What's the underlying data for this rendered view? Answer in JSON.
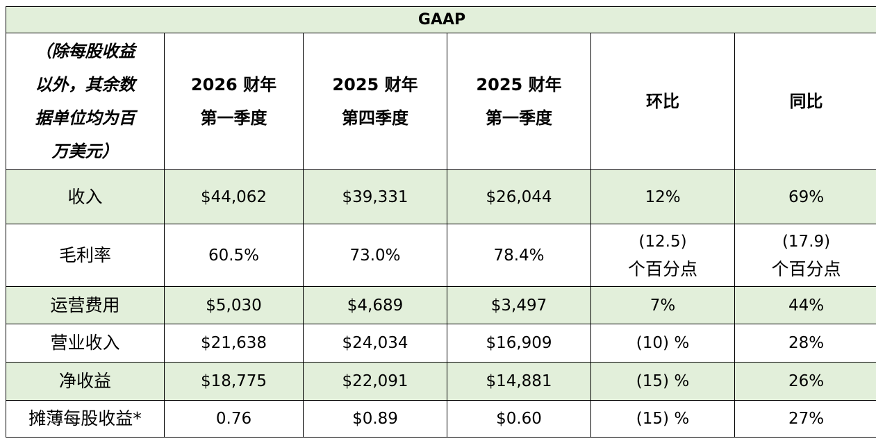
{
  "table": {
    "title": "GAAP",
    "unit_note_lines": [
      "（除每股收益",
      "以外，其余数",
      "据单位均为百",
      "万美元）"
    ],
    "columns": [
      {
        "lines": [
          "2026 财年",
          "第一季度"
        ]
      },
      {
        "lines": [
          "2025 财年",
          "第四季度"
        ]
      },
      {
        "lines": [
          "2025 财年",
          "第一季度"
        ]
      },
      {
        "lines": [
          "环比"
        ]
      },
      {
        "lines": [
          "同比"
        ]
      }
    ],
    "rows": [
      {
        "label": "收入",
        "cells": [
          "$44,062",
          "$39,331",
          "$26,044",
          "12%",
          "69%"
        ]
      },
      {
        "label": "毛利率",
        "cells": [
          "60.5%",
          "73.0%",
          "78.4%",
          "(12.5)\n个百分点",
          "(17.9)\n个百分点"
        ]
      },
      {
        "label": "运营费用",
        "cells": [
          "$5,030",
          "$4,689",
          "$3,497",
          "7%",
          "44%"
        ]
      },
      {
        "label": "营业收入",
        "cells": [
          "$21,638",
          "$24,034",
          "$16,909",
          "(10) %",
          "28%"
        ]
      },
      {
        "label": "净收益",
        "cells": [
          "$18,775",
          "$22,091",
          "$14,881",
          "(15) %",
          "26%"
        ]
      },
      {
        "label": "摊薄每股收益*",
        "cells": [
          "0.76",
          "$0.89",
          "$0.60",
          "(15) %",
          "27%"
        ]
      }
    ],
    "gross_margin_sub": {
      "qoq_value": "(12.5)",
      "qoq_unit": "个百分点",
      "yoy_value": "(17.9)",
      "yoy_unit": "个百分点"
    },
    "row_fill_color": "#e2efda"
  }
}
